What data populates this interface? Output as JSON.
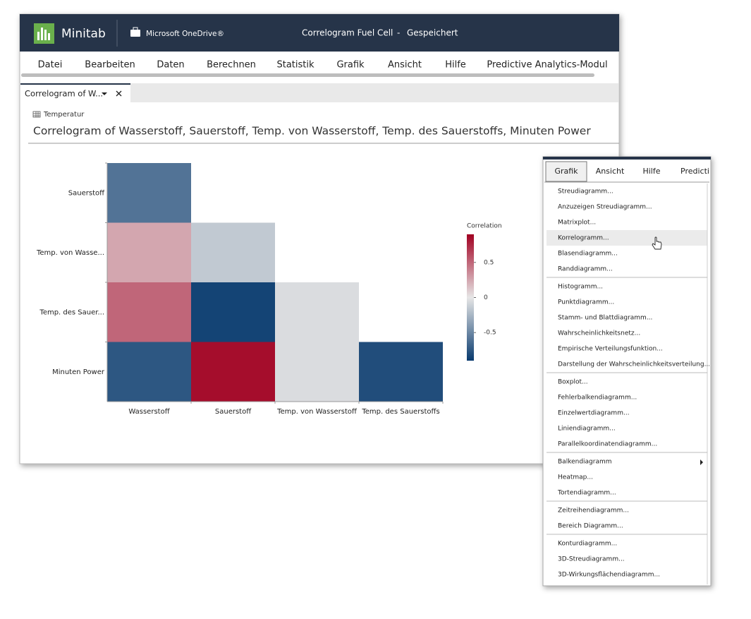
{
  "app": {
    "name": "Minitab",
    "storage": "Microsoft OneDrive®",
    "document": "Correlogram Fuel Cell",
    "separator": "-",
    "status": "Gespeichert"
  },
  "menu": [
    "Datei",
    "Bearbeiten",
    "Daten",
    "Berechnen",
    "Statistik",
    "Grafik",
    "Ansicht",
    "Hilfe",
    "Predictive Analytics-Modul"
  ],
  "tab": {
    "label": "Correlogram of W..."
  },
  "worksheet": "Temperatur",
  "chart_data": {
    "type": "heatmap",
    "title": "Correlogram of Wasserstoff, Sauerstoff, Temp. von Wasserstoff, Temp. des Sauerstoffs, Minuten Power",
    "x_categories": [
      "Wasserstoff",
      "Sauerstoff",
      "Temp. von Wasserstoff",
      "Temp. des Sauerstoffs"
    ],
    "y_categories": [
      "Sauerstoff",
      "Temp. von Wasse...",
      "Temp. des Sauer...",
      "Minuten Power"
    ],
    "values": [
      [
        -0.6,
        null,
        null,
        null
      ],
      [
        0.25,
        -0.15,
        null,
        null
      ],
      [
        0.5,
        -0.85,
        -0.05,
        null
      ],
      [
        -0.75,
        0.85,
        -0.05,
        -0.8
      ]
    ],
    "colorbar_label": "Correlation",
    "zlim": [
      -0.9,
      0.9
    ],
    "zticks": [
      -0.5,
      0,
      0.5
    ],
    "colors": [
      "#083a6e",
      "#e6e6e6",
      "#a10021"
    ]
  },
  "dropdown": {
    "groups": [
      [
        "Streudiagramm...",
        "Anzuzeigen Streudiagramm...",
        "Matrixplot...",
        "Korrelogramm...",
        "Blasendiagramm...",
        "Randdiagramm..."
      ],
      [
        "Histogramm...",
        "Punktdiagramm...",
        "Stamm- und Blattdiagramm...",
        "Wahrscheinlichkeitsnetz...",
        "Empirische Verteilungsfunktion...",
        "Darstellung der Wahrscheinlichkeitsverteilung..."
      ],
      [
        "Boxplot...",
        "Fehlerbalkendiagramm...",
        "Einzelwertdiagramm...",
        "Liniendiagramm...",
        "Parallelkoordinatendiagramm..."
      ],
      [
        "Balkendiagramm",
        "Heatmap...",
        "Tortendiagramm..."
      ],
      [
        "Zeitreihendiagramm...",
        "Bereich Diagramm..."
      ],
      [
        "Konturdiagramm...",
        "3D-Streudiagramm...",
        "3D-Wirkungsflächendiagramm..."
      ]
    ]
  }
}
